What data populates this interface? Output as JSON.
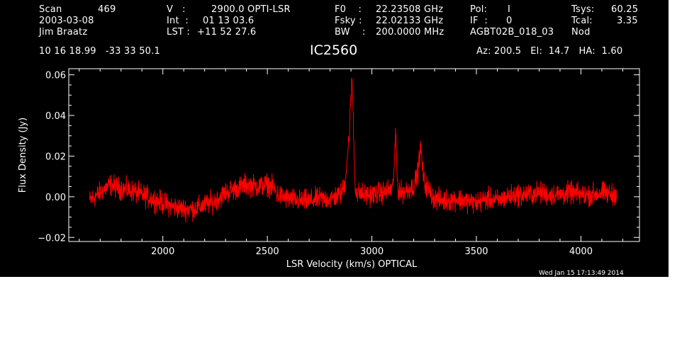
{
  "header": {
    "scan_label": "Scan",
    "scan_value": "469",
    "date": "2003-03-08",
    "observer": "Jim Braatz",
    "v_label": "V   :",
    "v_value": "2900.0 OPTI-LSR",
    "int_label": "Int  :",
    "int_value": "01 13 03.6",
    "lst_label": "LST :",
    "lst_value": "+11 52 27.6",
    "f0_label": "F0    :",
    "f0_value": "22.23508 GHz",
    "fsky_label": "Fsky :",
    "fsky_value": "22.02133 GHz",
    "bw_label": "BW    :",
    "bw_value": "200.0000 MHz",
    "pol_label": "Pol:",
    "pol_value": "I",
    "if_label": "IF  :",
    "if_value": "0",
    "project": "AGBT02B_018_03",
    "tsys_label": "Tsys:",
    "tsys_value": "60.25",
    "tcal_label": "Tcal:",
    "tcal_value": "3.35",
    "mode": "Nod",
    "coords": "10 16 18.99   -33 33 50.1",
    "az_el_ha": "Az: 200.5   El:  14.7   HA:  1.60",
    "footer_date": "Wed Jan 15 17:13:49 2014"
  },
  "colors": {
    "background": "#000000",
    "axes": "#ffffff",
    "trace": "#ff0000"
  },
  "chart_data": {
    "type": "line",
    "title": "IC2560",
    "xlabel": "LSR Velocity (km/s) OPTICAL",
    "ylabel": "Flux Density (Jy)",
    "xlim": [
      1550,
      4280
    ],
    "ylim": [
      -0.022,
      0.063
    ],
    "xticks": [
      2000,
      2500,
      3000,
      3500,
      4000
    ],
    "yticks": [
      -0.02,
      0.0,
      0.02,
      0.04,
      0.06
    ],
    "ytick_labels": [
      "−0.02",
      "0.00",
      "0.02",
      "0.04",
      "0.06"
    ],
    "grid": false,
    "series": [
      {
        "x": [
          1650,
          1700,
          1750,
          1770,
          1800,
          1850,
          1900,
          1950,
          2000,
          2050,
          2100,
          2150,
          2200,
          2250,
          2300,
          2350,
          2400,
          2450,
          2500,
          2520,
          2550,
          2600,
          2650,
          2700,
          2750,
          2800,
          2850,
          2870,
          2890,
          2900,
          2905,
          2910,
          2915,
          2920,
          2930,
          2940,
          2960,
          3000,
          3050,
          3100,
          3115,
          3120,
          3125,
          3140,
          3200,
          3220,
          3230,
          3235,
          3240,
          3250,
          3280,
          3300,
          3350,
          3400,
          3450,
          3500,
          3550,
          3600,
          3650,
          3700,
          3750,
          3800,
          3850,
          3900,
          3950,
          4000,
          4050,
          4100,
          4150,
          4170
        ],
        "y": [
          -0.002,
          0.002,
          0.006,
          0.005,
          0.004,
          0.003,
          0.001,
          -0.001,
          -0.003,
          -0.005,
          -0.006,
          -0.006,
          -0.004,
          -0.002,
          0.002,
          0.004,
          0.006,
          0.005,
          0.006,
          0.005,
          0.001,
          -0.001,
          -0.002,
          -0.002,
          -0.001,
          -0.001,
          0.001,
          0.006,
          0.028,
          0.048,
          0.058,
          0.044,
          0.02,
          0.006,
          0.001,
          0.002,
          0.001,
          0.001,
          0.002,
          0.004,
          0.031,
          0.012,
          0.004,
          0.002,
          0.005,
          0.012,
          0.022,
          0.023,
          0.016,
          0.007,
          0.002,
          -0.001,
          -0.002,
          -0.001,
          -0.002,
          -0.003,
          -0.001,
          -0.002,
          0.0,
          0.001,
          0.001,
          0.002,
          0.001,
          0.001,
          0.002,
          0.001,
          0.001,
          0.002,
          0.001,
          0.002
        ]
      }
    ]
  }
}
